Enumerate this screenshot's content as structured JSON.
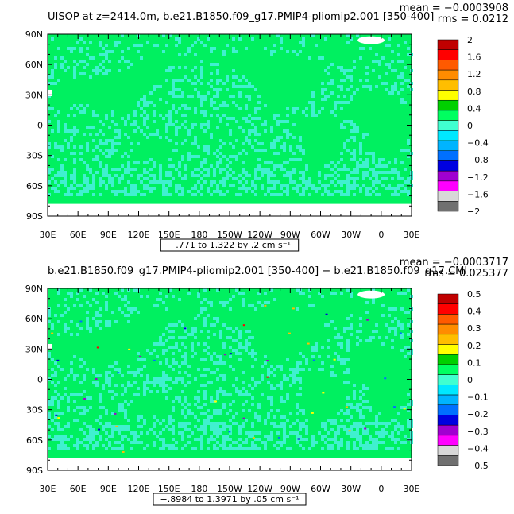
{
  "colors": {
    "ocean_green": "#00f060",
    "ocean_cyan": "#40f0d0",
    "land_fill": "#ffffff",
    "frame": "#000000"
  },
  "chart_data": [
    {
      "type": "heatmap",
      "title": "UISOP at z=2414.0m, b.e21.B1850.f09_g17.PMIP4-pliomip2.001 [350-400]",
      "stats": {
        "mean": "mean = −0.0003908",
        "rms": "rms = 0.0212"
      },
      "x_ticks": [
        "30E",
        "60E",
        "90E",
        "120E",
        "150E",
        "180",
        "150W",
        "120W",
        "90W",
        "60W",
        "30W",
        "0",
        "30E"
      ],
      "y_ticks": [
        "90N",
        "60N",
        "30N",
        "0",
        "30S",
        "60S",
        "90S"
      ],
      "contour_info": "−.771 to 1.322 by .2 cm s⁻¹",
      "colorbar": {
        "labels": [
          "2",
          "1.6",
          "1.2",
          "0.8",
          "0.4",
          "0",
          "−0.4",
          "−0.8",
          "−1.2",
          "−1.6",
          "−2"
        ],
        "colors": [
          "#c00000",
          "#ff0000",
          "#ff5a00",
          "#ff8c00",
          "#ffbe00",
          "#ffff00",
          "#00d000",
          "#00ff60",
          "#40ffd0",
          "#00e8ff",
          "#00b4ff",
          "#0070ff",
          "#0000e0",
          "#a000d0",
          "#ff00ff",
          "#d8d8d8",
          "#707070"
        ]
      }
    },
    {
      "type": "heatmap",
      "title": "b.e21.B1850.f09_g17.PMIP4-pliomip2.001 [350-400] − b.e21.B1850.f09_g17.CMI",
      "stats": {
        "mean": "mean = −0.0003717",
        "rms": "rms = 0.025377"
      },
      "x_ticks": [
        "30E",
        "60E",
        "90E",
        "120E",
        "150E",
        "180",
        "150W",
        "120W",
        "90W",
        "60W",
        "30W",
        "0",
        "30E"
      ],
      "y_ticks": [
        "90N",
        "60N",
        "30N",
        "0",
        "30S",
        "60S",
        "90S"
      ],
      "contour_info": "−.8984 to 1.3971 by .05 cm s⁻¹",
      "colorbar": {
        "labels": [
          "0.5",
          "0.4",
          "0.3",
          "0.2",
          "0.1",
          "0",
          "−0.1",
          "−0.2",
          "−0.3",
          "−0.4",
          "−0.5"
        ],
        "colors": [
          "#c00000",
          "#ff0000",
          "#ff5a00",
          "#ff8c00",
          "#ffbe00",
          "#ffff00",
          "#00d000",
          "#00ff60",
          "#40ffd0",
          "#00e8ff",
          "#00b4ff",
          "#0070ff",
          "#0000e0",
          "#a000d0",
          "#ff00ff",
          "#d8d8d8",
          "#707070"
        ]
      }
    }
  ]
}
